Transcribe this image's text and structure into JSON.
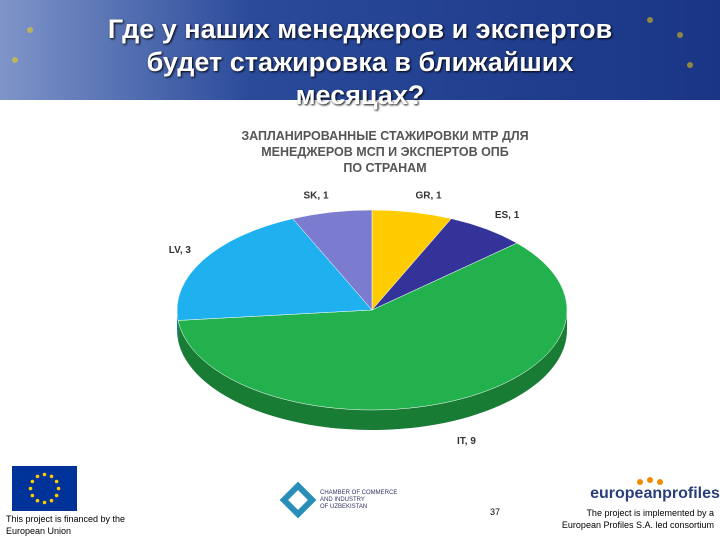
{
  "slide_title": [
    "Где у наших менеджеров и экспертов",
    "будет стажировка в ближайших",
    "месяцах?"
  ],
  "chart_data": {
    "type": "pie3d",
    "title": [
      "ЗАПЛАНИРОВАННЫЕ СТАЖИРОВКИ МТР ДЛЯ",
      "МЕНЕДЖЕРОВ МСП И ЭКСПЕРТОВ ОПБ",
      "ПО СТРАНАМ"
    ],
    "values": [
      1,
      1,
      9,
      3,
      1
    ],
    "value_labels": [
      "GR, 1",
      "ES, 1",
      "IT, 9",
      "LV, 3",
      "SK, 1"
    ],
    "colors": [
      "#ffcc00",
      "#333399",
      "#22b14c",
      "#1fb0f0",
      "#7b7bd0"
    ]
  },
  "footer": {
    "left": [
      "This project is financed by  the",
      "European Union"
    ],
    "chamber": [
      "CHAMBER OF COMMERCE",
      "AND INDUSTRY",
      "OF UZBEKISTAN"
    ],
    "page_number": "37",
    "brand": "europeanprofiles",
    "right": [
      "The project is implemented by a",
      "European Profiles S.A. led consortium"
    ]
  }
}
